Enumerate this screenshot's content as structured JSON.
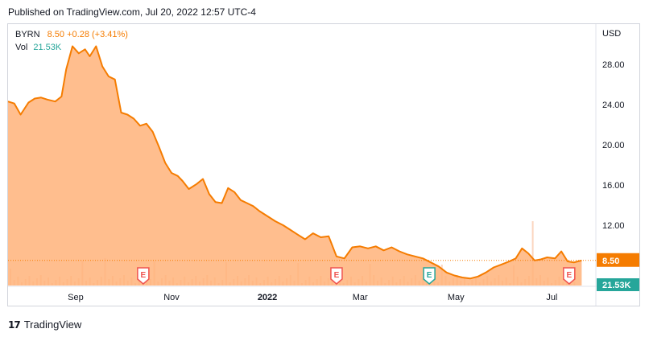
{
  "published": "Published on TradingView.com, Jul 20, 2022 12:57 UTC-4",
  "legend": {
    "symbol": "BYRN",
    "price": "8.50",
    "change": "+0.28 (+3.41%)",
    "vol_label": "Vol",
    "vol_value": "21.53K"
  },
  "footer": {
    "brand": "TradingView",
    "logo": "17"
  },
  "colors": {
    "line": "#f57c00",
    "area": "#ffb37a",
    "volume": "#f7b48a",
    "earnings_red": "#ef5350",
    "earnings_green": "#26a69a",
    "vol_badge": "#26a69a"
  },
  "chart_data": {
    "type": "area",
    "currency": "USD",
    "ylim": [
      6,
      32
    ],
    "y_ticks": [
      "28.00",
      "24.00",
      "20.00",
      "16.00",
      "12.00"
    ],
    "y_tick_values": [
      28,
      24,
      20,
      16,
      12
    ],
    "x_ticks": [
      "Sep",
      "Nov",
      "2022",
      "Mar",
      "May",
      "Jul"
    ],
    "x_tick_dates": [
      "2021-09-01",
      "2021-11-01",
      "2022-01-01",
      "2022-03-01",
      "2022-05-01",
      "2022-07-01"
    ],
    "x_range": [
      "2021-07-20",
      "2022-07-29"
    ],
    "last_price": "8.50",
    "last_volume": "21.53K",
    "price_series": [
      [
        "2021-07-20",
        24.3
      ],
      [
        "2021-07-24",
        24.1
      ],
      [
        "2021-07-28",
        23.0
      ],
      [
        "2021-08-02",
        24.2
      ],
      [
        "2021-08-06",
        24.6
      ],
      [
        "2021-08-10",
        24.7
      ],
      [
        "2021-08-14",
        24.5
      ],
      [
        "2021-08-19",
        24.3
      ],
      [
        "2021-08-23",
        24.8
      ],
      [
        "2021-08-26",
        27.5
      ],
      [
        "2021-08-30",
        29.8
      ],
      [
        "2021-09-03",
        29.1
      ],
      [
        "2021-09-07",
        29.5
      ],
      [
        "2021-09-10",
        28.8
      ],
      [
        "2021-09-14",
        29.8
      ],
      [
        "2021-09-18",
        27.8
      ],
      [
        "2021-09-22",
        26.8
      ],
      [
        "2021-09-26",
        26.5
      ],
      [
        "2021-09-30",
        23.2
      ],
      [
        "2021-10-04",
        23.0
      ],
      [
        "2021-10-08",
        22.6
      ],
      [
        "2021-10-12",
        21.9
      ],
      [
        "2021-10-16",
        22.1
      ],
      [
        "2021-10-20",
        21.3
      ],
      [
        "2021-10-24",
        19.8
      ],
      [
        "2021-10-28",
        18.2
      ],
      [
        "2021-11-01",
        17.2
      ],
      [
        "2021-11-05",
        16.9
      ],
      [
        "2021-11-08",
        16.4
      ],
      [
        "2021-11-12",
        15.6
      ],
      [
        "2021-11-17",
        16.1
      ],
      [
        "2021-11-21",
        16.6
      ],
      [
        "2021-11-25",
        15.1
      ],
      [
        "2021-11-29",
        14.3
      ],
      [
        "2021-12-03",
        14.2
      ],
      [
        "2021-12-07",
        15.7
      ],
      [
        "2021-12-11",
        15.3
      ],
      [
        "2021-12-15",
        14.5
      ],
      [
        "2021-12-19",
        14.2
      ],
      [
        "2021-12-23",
        13.9
      ],
      [
        "2021-12-27",
        13.4
      ],
      [
        "2022-01-02",
        12.8
      ],
      [
        "2022-01-06",
        12.4
      ],
      [
        "2022-01-11",
        12.0
      ],
      [
        "2022-01-15",
        11.6
      ],
      [
        "2022-01-20",
        11.1
      ],
      [
        "2022-01-25",
        10.6
      ],
      [
        "2022-01-30",
        11.2
      ],
      [
        "2022-02-04",
        10.8
      ],
      [
        "2022-02-09",
        10.9
      ],
      [
        "2022-02-14",
        8.9
      ],
      [
        "2022-02-19",
        8.7
      ],
      [
        "2022-02-24",
        9.8
      ],
      [
        "2022-03-01",
        9.9
      ],
      [
        "2022-03-06",
        9.7
      ],
      [
        "2022-03-11",
        9.9
      ],
      [
        "2022-03-16",
        9.5
      ],
      [
        "2022-03-21",
        9.8
      ],
      [
        "2022-03-26",
        9.4
      ],
      [
        "2022-03-31",
        9.1
      ],
      [
        "2022-04-05",
        8.9
      ],
      [
        "2022-04-10",
        8.7
      ],
      [
        "2022-04-15",
        8.3
      ],
      [
        "2022-04-20",
        7.9
      ],
      [
        "2022-04-25",
        7.3
      ],
      [
        "2022-04-30",
        7.0
      ],
      [
        "2022-05-05",
        6.8
      ],
      [
        "2022-05-10",
        6.7
      ],
      [
        "2022-05-15",
        6.9
      ],
      [
        "2022-05-20",
        7.3
      ],
      [
        "2022-05-25",
        7.8
      ],
      [
        "2022-05-30",
        8.1
      ],
      [
        "2022-06-04",
        8.4
      ],
      [
        "2022-06-08",
        8.7
      ],
      [
        "2022-06-12",
        9.7
      ],
      [
        "2022-06-16",
        9.2
      ],
      [
        "2022-06-20",
        8.5
      ],
      [
        "2022-06-24",
        8.6
      ],
      [
        "2022-06-28",
        8.8
      ],
      [
        "2022-07-03",
        8.7
      ],
      [
        "2022-07-07",
        9.4
      ],
      [
        "2022-07-11",
        8.4
      ],
      [
        "2022-07-15",
        8.3
      ],
      [
        "2022-07-20",
        8.5
      ]
    ],
    "earnings_markers": [
      {
        "date": "2021-10-14",
        "label": "E",
        "kind": "red"
      },
      {
        "date": "2022-02-14",
        "label": "E",
        "kind": "red"
      },
      {
        "date": "2022-04-14",
        "label": "E",
        "kind": "green"
      },
      {
        "date": "2022-07-12",
        "label": "E",
        "kind": "red"
      }
    ]
  }
}
